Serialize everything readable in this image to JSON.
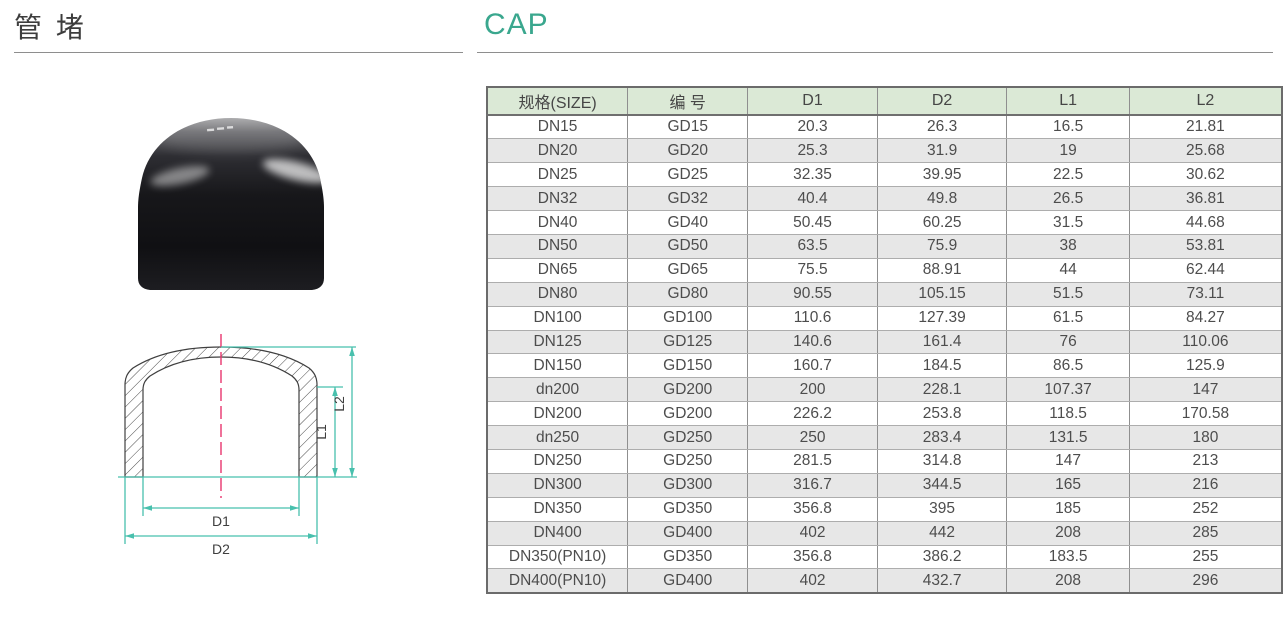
{
  "page": {
    "title_zh": "管 堵",
    "title_en": "CAP"
  },
  "colors": {
    "accent_teal": "#3aa78e",
    "table_header_bg": "#dbe9d6",
    "row_alt_bg": "#e7e7e7",
    "dimension_line": "#48c0ad",
    "centerline": "#e8356e"
  },
  "table": {
    "headers": [
      "规格(SIZE)",
      "编 号",
      "D1",
      "D2",
      "L1",
      "L2"
    ],
    "rows": [
      [
        "DN15",
        "GD15",
        "20.3",
        "26.3",
        "16.5",
        "21.81"
      ],
      [
        "DN20",
        "GD20",
        "25.3",
        "31.9",
        "19",
        "25.68"
      ],
      [
        "DN25",
        "GD25",
        "32.35",
        "39.95",
        "22.5",
        "30.62"
      ],
      [
        "DN32",
        "GD32",
        "40.4",
        "49.8",
        "26.5",
        "36.81"
      ],
      [
        "DN40",
        "GD40",
        "50.45",
        "60.25",
        "31.5",
        "44.68"
      ],
      [
        "DN50",
        "GD50",
        "63.5",
        "75.9",
        "38",
        "53.81"
      ],
      [
        "DN65",
        "GD65",
        "75.5",
        "88.91",
        "44",
        "62.44"
      ],
      [
        "DN80",
        "GD80",
        "90.55",
        "105.15",
        "51.5",
        "73.11"
      ],
      [
        "DN100",
        "GD100",
        "110.6",
        "127.39",
        "61.5",
        "84.27"
      ],
      [
        "DN125",
        "GD125",
        "140.6",
        "161.4",
        "76",
        "110.06"
      ],
      [
        "DN150",
        "GD150",
        "160.7",
        "184.5",
        "86.5",
        "125.9"
      ],
      [
        "dn200",
        "GD200",
        "200",
        "228.1",
        "107.37",
        "147"
      ],
      [
        "DN200",
        "GD200",
        "226.2",
        "253.8",
        "118.5",
        "170.58"
      ],
      [
        "dn250",
        "GD250",
        "250",
        "283.4",
        "131.5",
        "180"
      ],
      [
        "DN250",
        "GD250",
        "281.5",
        "314.8",
        "147",
        "213"
      ],
      [
        "DN300",
        "GD300",
        "316.7",
        "344.5",
        "165",
        "216"
      ],
      [
        "DN350",
        "GD350",
        "356.8",
        "395",
        "185",
        "252"
      ],
      [
        "DN400",
        "GD400",
        "402",
        "442",
        "208",
        "285"
      ],
      [
        "DN350(PN10)",
        "GD350",
        "356.8",
        "386.2",
        "183.5",
        "255"
      ],
      [
        "DN400(PN10)",
        "GD400",
        "402",
        "432.7",
        "208",
        "296"
      ]
    ]
  },
  "drawing": {
    "labels": {
      "d1": "D1",
      "d2": "D2",
      "l1": "L1",
      "l2": "L2"
    }
  }
}
